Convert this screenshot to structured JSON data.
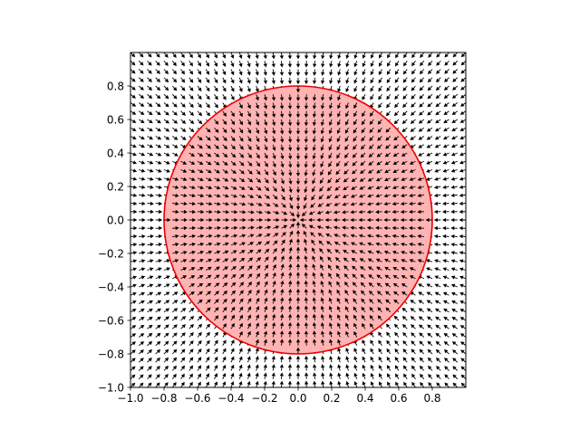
{
  "chart_data": {
    "type": "quiver",
    "title": "",
    "xlabel": "",
    "ylabel": "",
    "xlim": [
      -1.0,
      1.0
    ],
    "ylim": [
      -1.0,
      1.0
    ],
    "xticks": [
      "−1.0",
      "−0.8",
      "−0.6",
      "−0.4",
      "−0.2",
      "0.0",
      "0.2",
      "0.4",
      "0.6",
      "0.8"
    ],
    "xtick_values": [
      -1.0,
      -0.8,
      -0.6,
      -0.4,
      -0.2,
      0.0,
      0.2,
      0.4,
      0.6,
      0.8
    ],
    "yticks": [
      "−1.0",
      "−0.8",
      "−0.6",
      "−0.4",
      "−0.2",
      "0.0",
      "0.2",
      "0.4",
      "0.6",
      "0.8"
    ],
    "ytick_values": [
      -1.0,
      -0.8,
      -0.6,
      -0.4,
      -0.2,
      0.0,
      0.2,
      0.4,
      0.6,
      0.8
    ],
    "grid": false,
    "vector_field": {
      "x_range": [
        -1.0,
        1.0
      ],
      "y_range": [
        -1.0,
        1.0
      ],
      "grid_points_per_axis": 41,
      "spacing": 0.05,
      "direction": "radial, pointing toward center (0, 0)",
      "arrow_color": "#000000"
    },
    "circle": {
      "center": [
        0.0,
        0.0
      ],
      "radius": 0.8,
      "fill_color": "#ffb3b3",
      "edge_color": "#ee0000"
    }
  }
}
